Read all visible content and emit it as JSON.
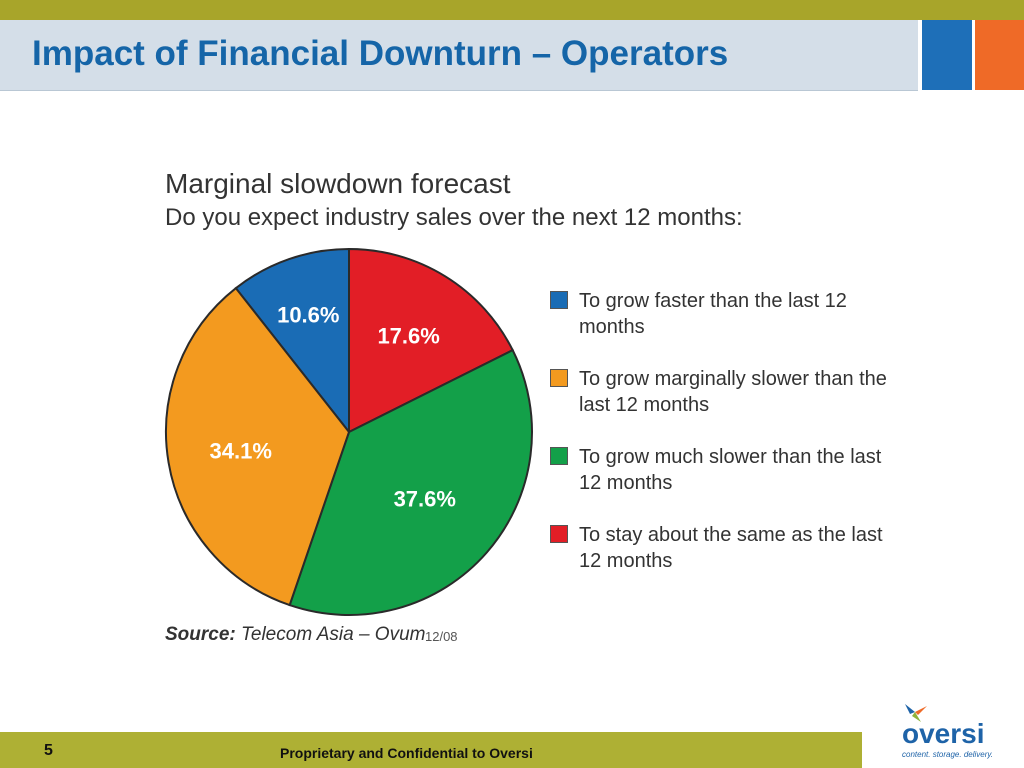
{
  "header": {
    "title": "Impact of Financial Downturn – Operators",
    "accent_colors": [
      "#a8a52a",
      "#1e6fb8",
      "#ef6a27"
    ]
  },
  "chart_data": {
    "type": "pie",
    "title": "Marginal slowdown forecast",
    "subtitle": "Do you expect industry sales over the next 12 months:",
    "slices": [
      {
        "label": "To grow faster than the last 12 months",
        "value": 10.6,
        "display": "10.6%",
        "color": "#1a6cb5"
      },
      {
        "label": "To stay about the same as the last 12 months",
        "value": 17.6,
        "display": "17.6%",
        "color": "#e21e26"
      },
      {
        "label": "To grow much slower than the last 12 months",
        "value": 37.6,
        "display": "37.6%",
        "color": "#13a049"
      },
      {
        "label": "To grow marginally slower than the last 12 months",
        "value": 34.1,
        "display": "34.1%",
        "color": "#f39a1f"
      }
    ],
    "legend": [
      {
        "label": "To grow faster than the last 12 months",
        "color": "#1a6cb5"
      },
      {
        "label": "To grow marginally slower than the last 12 months",
        "color": "#f39a1f"
      },
      {
        "label": "To grow much slower than the last 12 months",
        "color": "#13a049"
      },
      {
        "label": "To stay about the same as the last 12 months",
        "color": "#e21e26"
      }
    ],
    "legend_position": "right",
    "source_label": "Source:",
    "source_text": "Telecom Asia – Ovum",
    "date": "12/08"
  },
  "footer": {
    "page_number": "5",
    "text": "Proprietary and Confidential to Oversi"
  },
  "logo": {
    "name": "oversi",
    "tagline": "content. storage. delivery."
  }
}
